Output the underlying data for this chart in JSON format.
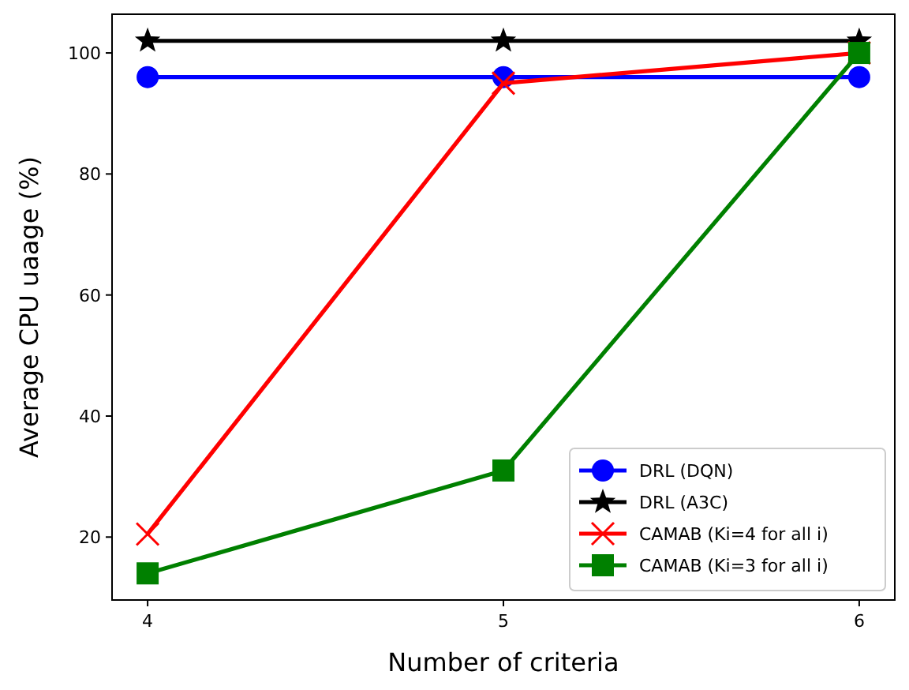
{
  "chart_data": {
    "type": "line",
    "xlabel": "Number of criteria",
    "ylabel": "Average CPU uaage (%)",
    "x": [
      4,
      5,
      6
    ],
    "xlim": [
      3.9,
      6.1
    ],
    "xticks": [
      4,
      5,
      6
    ],
    "ylim": [
      9.6,
      106.4
    ],
    "yticks": [
      20,
      40,
      60,
      80,
      100
    ],
    "grid": false,
    "legend": "bottom right",
    "series": [
      {
        "name": "DRL (DQN)",
        "color": "#0000ff",
        "marker": "circle",
        "values": [
          96,
          96,
          96
        ]
      },
      {
        "name": "DRL (A3C)",
        "color": "#000000",
        "marker": "star",
        "values": [
          102,
          102,
          102
        ]
      },
      {
        "name": "CAMAB (Ki=4 for all i)",
        "color": "#ff0000",
        "marker": "cross",
        "values": [
          20.5,
          95,
          100
        ]
      },
      {
        "name": "CAMAB (Ki=3 for all i)",
        "color": "#008000",
        "marker": "square",
        "values": [
          14,
          31,
          100
        ]
      }
    ]
  }
}
